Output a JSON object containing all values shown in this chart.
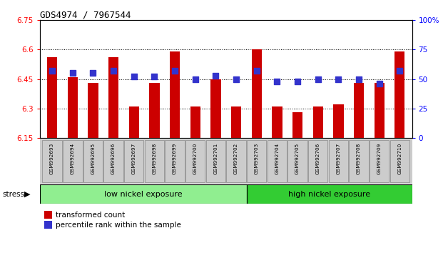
{
  "title": "GDS4974 / 7967544",
  "samples": [
    "GSM992693",
    "GSM992694",
    "GSM992695",
    "GSM992696",
    "GSM992697",
    "GSM992698",
    "GSM992699",
    "GSM992700",
    "GSM992701",
    "GSM992702",
    "GSM992703",
    "GSM992704",
    "GSM992705",
    "GSM992706",
    "GSM992707",
    "GSM992708",
    "GSM992709",
    "GSM992710"
  ],
  "bar_values": [
    6.56,
    6.46,
    6.43,
    6.56,
    6.31,
    6.43,
    6.59,
    6.31,
    6.45,
    6.31,
    6.6,
    6.31,
    6.28,
    6.31,
    6.32,
    6.43,
    6.43,
    6.59
  ],
  "dot_values": [
    57,
    55,
    55,
    57,
    52,
    52,
    57,
    50,
    53,
    50,
    57,
    48,
    48,
    50,
    50,
    50,
    46,
    57
  ],
  "ylim": [
    6.15,
    6.75
  ],
  "yticks": [
    6.15,
    6.3,
    6.45,
    6.6,
    6.75
  ],
  "right_yticks": [
    0,
    25,
    50,
    75,
    100
  ],
  "bar_color": "#CC0000",
  "dot_color": "#3333CC",
  "low_nickel_count": 10,
  "high_nickel_count": 8,
  "group_labels": [
    "low nickel exposure",
    "high nickel exposure"
  ],
  "group_color_low": "#90EE90",
  "group_color_high": "#33CC33",
  "stress_label": "stress",
  "legend_bar": "transformed count",
  "legend_dot": "percentile rank within the sample",
  "dot_size": 30,
  "bar_width": 0.5
}
